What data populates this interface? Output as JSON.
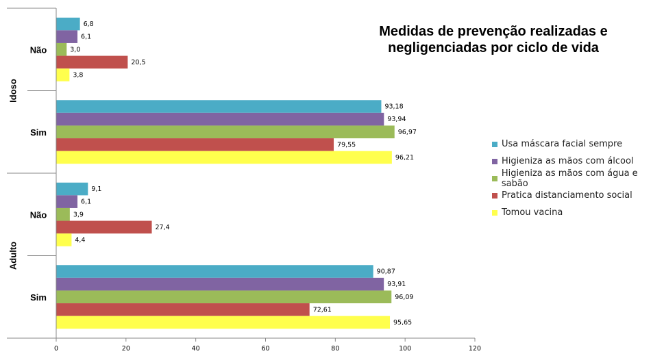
{
  "chart_data": {
    "type": "bar",
    "orientation": "horizontal",
    "title": "Medidas de prevenção realizadas e negligenciadas por ciclo de vida",
    "xlim": [
      0,
      120
    ],
    "x_ticks": [
      "0",
      "20",
      "40",
      "60",
      "80",
      "100",
      "120"
    ],
    "groups": [
      {
        "name": "Idoso",
        "categories": [
          {
            "label": "Não",
            "values": [
              6.8,
              6.1,
              3.0,
              20.5,
              3.8
            ],
            "value_labels": [
              "6,8",
              "6,1",
              "3,0",
              "20,5",
              "3,8"
            ]
          },
          {
            "label": "Sim",
            "values": [
              93.18,
              93.94,
              96.97,
              79.55,
              96.21
            ],
            "value_labels": [
              "93,18",
              "93,94",
              "96,97",
              "79,55",
              "96,21"
            ]
          }
        ]
      },
      {
        "name": "Adulto",
        "categories": [
          {
            "label": "Não",
            "values": [
              9.1,
              6.1,
              3.9,
              27.4,
              4.4
            ],
            "value_labels": [
              "9,1",
              "6,1",
              "3,9",
              "27,4",
              "4,4"
            ]
          },
          {
            "label": "Sim",
            "values": [
              90.87,
              93.91,
              96.09,
              72.61,
              95.65
            ],
            "value_labels": [
              "90,87",
              "93,91",
              "96,09",
              "72,61",
              "95,65"
            ]
          }
        ]
      }
    ],
    "series": [
      {
        "name": "Usa máscara facial sempre",
        "color": "#4BACC6"
      },
      {
        "name": "Higieniza as mãos com álcool",
        "color": "#8064A2"
      },
      {
        "name": "Higieniza as mãos com água e sabão",
        "color": "#9BBB59"
      },
      {
        "name": "Pratica distanciamento social",
        "color": "#C0504D"
      },
      {
        "name": "Tomou vacina",
        "color": "#FFFF4D"
      }
    ],
    "legend_position": "right",
    "grid": false
  }
}
